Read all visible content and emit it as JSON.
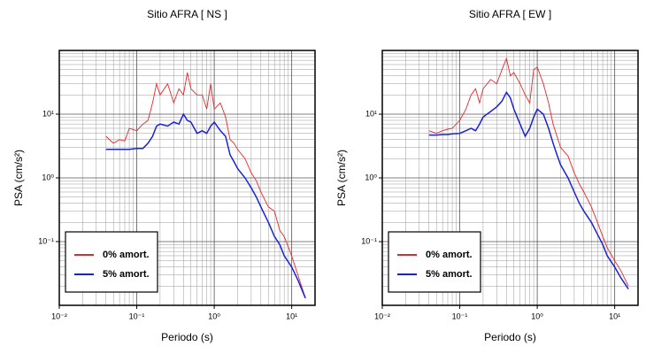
{
  "chart_data": [
    {
      "type": "line",
      "title": "Sitio AFRA [ NS ]",
      "x_label": "Periodo (s)",
      "y_label": "PSA (cm/s²)",
      "log_x": true,
      "log_y": true,
      "grid": true,
      "minor_grid": true,
      "legend": "lower left",
      "xlim": [
        0.01,
        20
      ],
      "ylim": [
        0.01,
        100
      ],
      "xticks": [
        {
          "value": 0.01,
          "label": "10⁻²"
        },
        {
          "value": 0.1,
          "label": "10⁻¹"
        },
        {
          "value": 1,
          "label": "10⁰"
        },
        {
          "value": 10,
          "label": "10¹"
        }
      ],
      "yticks": [
        {
          "value": 0.1,
          "label": "10⁻¹"
        },
        {
          "value": 1,
          "label": "10⁰"
        },
        {
          "value": 10,
          "label": "10¹"
        }
      ],
      "x": [
        0.04,
        0.05,
        0.06,
        0.07,
        0.08,
        0.1,
        0.12,
        0.14,
        0.16,
        0.18,
        0.2,
        0.25,
        0.3,
        0.35,
        0.4,
        0.45,
        0.5,
        0.6,
        0.7,
        0.8,
        0.9,
        1.0,
        1.2,
        1.4,
        1.6,
        1.8,
        2,
        2.5,
        3,
        3.5,
        4,
        5,
        6,
        7,
        8,
        10,
        12,
        15
      ],
      "series": [
        {
          "name": "0% amort.",
          "color": "#e8262b",
          "values": [
            4.5,
            3.5,
            4,
            3.8,
            6,
            5.5,
            7,
            8,
            15,
            30,
            20,
            30,
            15,
            25,
            20,
            45,
            25,
            20,
            20,
            12,
            30,
            12,
            15,
            9,
            4,
            3.5,
            2.8,
            2,
            1.2,
            0.9,
            0.6,
            0.35,
            0.3,
            0.15,
            0.12,
            0.06,
            0.03,
            0.013
          ]
        },
        {
          "name": "5% amort.",
          "color": "#1a22d6",
          "values": [
            2.8,
            2.8,
            2.8,
            2.8,
            2.8,
            2.9,
            2.9,
            3.5,
            4.5,
            6.5,
            7,
            6.5,
            7.5,
            7,
            10,
            8,
            7.5,
            5,
            5.5,
            5,
            6.5,
            7.5,
            5.5,
            4.5,
            2.3,
            1.8,
            1.4,
            1.0,
            0.7,
            0.5,
            0.35,
            0.2,
            0.12,
            0.09,
            0.06,
            0.04,
            0.025,
            0.013
          ]
        }
      ]
    },
    {
      "type": "line",
      "title": "Sitio AFRA [ EW ]",
      "x_label": "Periodo (s)",
      "y_label": "PSA (cm/s²)",
      "log_x": true,
      "log_y": true,
      "grid": true,
      "minor_grid": true,
      "legend": "lower left",
      "xlim": [
        0.01,
        20
      ],
      "ylim": [
        0.01,
        100
      ],
      "xticks": [
        {
          "value": 0.01,
          "label": "10⁻²"
        },
        {
          "value": 0.1,
          "label": "10⁻¹"
        },
        {
          "value": 1,
          "label": "10⁰"
        },
        {
          "value": 10,
          "label": "10¹"
        }
      ],
      "yticks": [
        {
          "value": 0.1,
          "label": "10⁻¹"
        },
        {
          "value": 1,
          "label": "10⁰"
        },
        {
          "value": 10,
          "label": "10¹"
        }
      ],
      "x": [
        0.04,
        0.05,
        0.06,
        0.07,
        0.08,
        0.1,
        0.12,
        0.14,
        0.16,
        0.18,
        0.2,
        0.25,
        0.3,
        0.35,
        0.4,
        0.45,
        0.5,
        0.6,
        0.7,
        0.8,
        0.9,
        1.0,
        1.2,
        1.4,
        1.6,
        1.8,
        2,
        2.5,
        3,
        3.5,
        4,
        5,
        6,
        7,
        8,
        10,
        12,
        15
      ],
      "series": [
        {
          "name": "0% amort.",
          "color": "#e8262b",
          "values": [
            5.5,
            5,
            5.5,
            5.8,
            6,
            8,
            12,
            20,
            25,
            15,
            25,
            35,
            30,
            50,
            75,
            40,
            45,
            30,
            20,
            15,
            50,
            55,
            30,
            15,
            7,
            4.5,
            3,
            2.2,
            1.2,
            0.8,
            0.6,
            0.35,
            0.2,
            0.12,
            0.08,
            0.05,
            0.035,
            0.02
          ]
        },
        {
          "name": "5% amort.",
          "color": "#1a22d6",
          "values": [
            4.7,
            4.7,
            4.8,
            4.8,
            4.9,
            5,
            5.5,
            6,
            5.5,
            7,
            9,
            11,
            13,
            16,
            22,
            18,
            12,
            7,
            4.5,
            6,
            9,
            12,
            10,
            6,
            3.5,
            2.3,
            1.6,
            1.0,
            0.6,
            0.4,
            0.3,
            0.2,
            0.13,
            0.09,
            0.06,
            0.04,
            0.027,
            0.018
          ]
        }
      ]
    }
  ]
}
